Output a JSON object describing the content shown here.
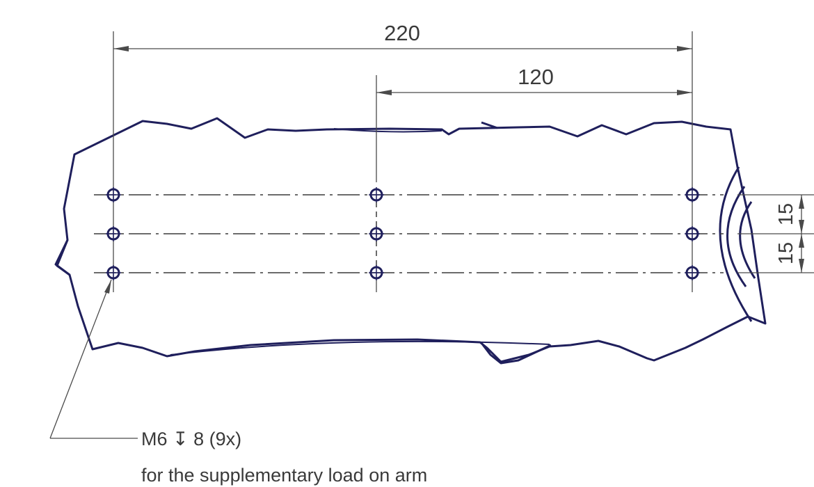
{
  "dimensions": {
    "overall_spacing": "220",
    "middle_spacing": "120",
    "row_spacing_upper": "15",
    "row_spacing_lower": "15"
  },
  "callout": {
    "thread_spec": "M6 ↧ 8 (9x)",
    "description": "for the supplementary load on arm"
  },
  "colors": {
    "outline": "#1f1f5c",
    "dimension_line": "#4a4a4a",
    "text": "#3a3a3a"
  },
  "hole_pattern": {
    "count": 9,
    "columns": 3,
    "rows": 3
  }
}
